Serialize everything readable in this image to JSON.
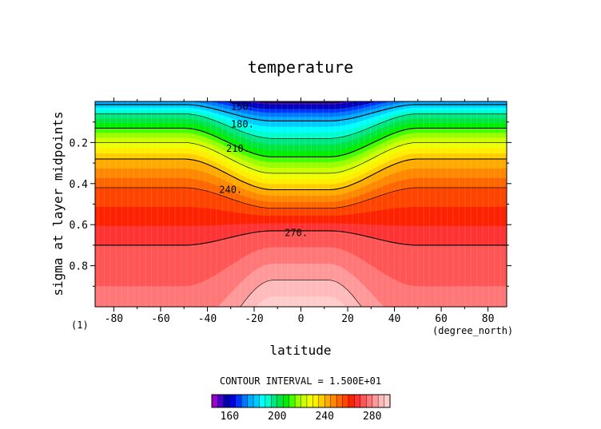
{
  "chart_data": {
    "type": "contour",
    "title": "temperature",
    "xlabel": "latitude",
    "ylabel": "sigma at layer midpoints",
    "x_unit_label": "(degree_north)",
    "corner_label": "(1)",
    "xlim": [
      -88,
      88
    ],
    "ylim": [
      1.0,
      0.0
    ],
    "x_ticks": [
      -80,
      -60,
      -40,
      -20,
      0,
      20,
      40,
      60,
      80
    ],
    "x_tick_labels": [
      "-80",
      "-60",
      "-40",
      "-20",
      "0",
      "20",
      "40",
      "60",
      "80"
    ],
    "y_ticks": [
      0.2,
      0.4,
      0.6,
      0.8
    ],
    "y_tick_labels": [
      "0.2",
      "0.4",
      "0.6",
      "0.8"
    ],
    "contour_interval_text": "CONTOUR INTERVAL = 1.500E+01",
    "contour_levels": [
      150,
      165,
      180,
      195,
      210,
      225,
      240,
      255,
      270,
      285
    ],
    "contour_labels": [
      {
        "text": "150.",
        "lat": -25,
        "sigma": 0.025
      },
      {
        "text": "180.",
        "lat": -25,
        "sigma": 0.11
      },
      {
        "text": "210.",
        "lat": -27,
        "sigma": 0.23
      },
      {
        "text": "240.",
        "lat": -30,
        "sigma": 0.43
      },
      {
        "text": "270.",
        "lat": -2,
        "sigma": 0.64
      }
    ],
    "profiles": {
      "levels": [
        150,
        165,
        180,
        195,
        210,
        225,
        240,
        255,
        270,
        285
      ],
      "equator_sigma": [
        0.005,
        0.035,
        0.095,
        0.18,
        0.27,
        0.35,
        0.43,
        0.52,
        0.63,
        0.87
      ],
      "pole_sigma": [
        -0.06,
        -0.03,
        0.015,
        0.06,
        0.13,
        0.2,
        0.28,
        0.42,
        0.7,
        1.3
      ]
    },
    "colorbar": {
      "tick_labels": [
        "160",
        "200",
        "240",
        "280"
      ],
      "tick_values": [
        160,
        200,
        240,
        280
      ],
      "min": 145,
      "max": 295,
      "step": 5,
      "colors": [
        "#9b00cc",
        "#4400cc",
        "#0000aa",
        "#0000e0",
        "#0033ff",
        "#0077ff",
        "#00aaff",
        "#00ccff",
        "#00ffff",
        "#00ffcc",
        "#00e680",
        "#00e640",
        "#00ee00",
        "#44ff00",
        "#99ff00",
        "#ccff00",
        "#eeff00",
        "#ffee00",
        "#ffcc00",
        "#ffaa00",
        "#ff8800",
        "#ff6600",
        "#ff4400",
        "#ff2200",
        "#ff3333",
        "#ff5555",
        "#ff7777",
        "#ff9999",
        "#ffbbbb",
        "#ffcccc"
      ]
    }
  }
}
